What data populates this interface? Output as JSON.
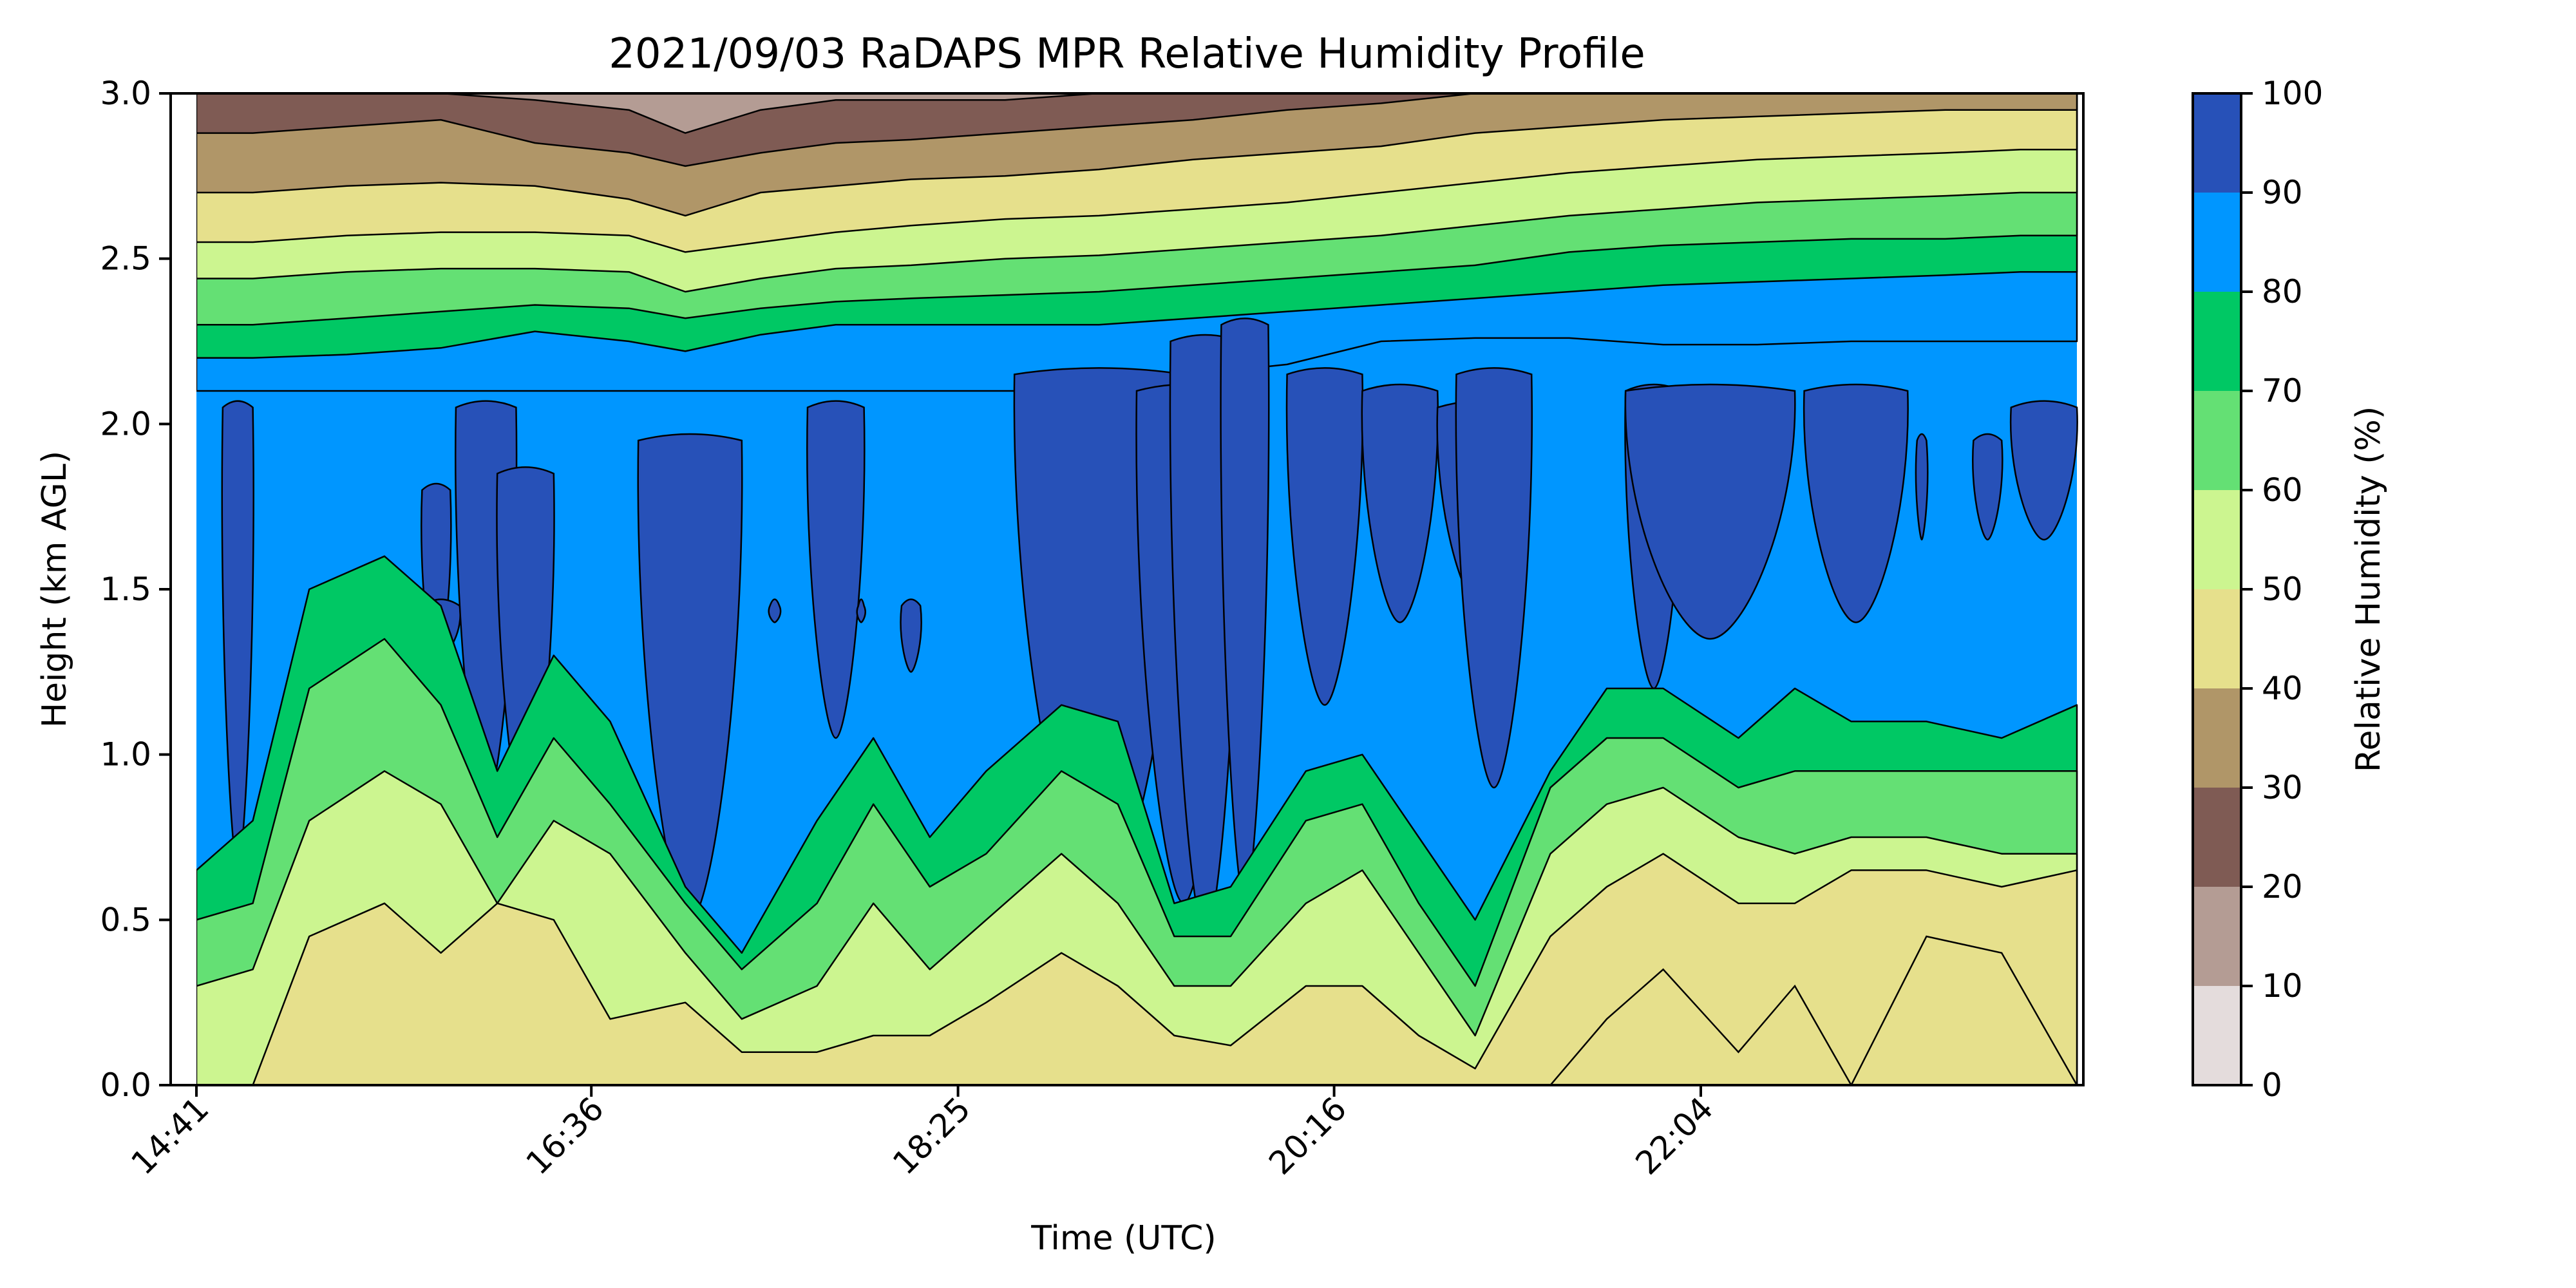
{
  "chart_data": {
    "type": "contour",
    "title": "2021/09/03 RaDAPS MPR Relative Humidity Profile",
    "xlabel": "Time (UTC)",
    "ylabel": "Height (km AGL)",
    "x_ticks": [
      "14:41",
      "16:36",
      "18:25",
      "20:16",
      "22:04"
    ],
    "y_ticks": [
      "0.0",
      "0.5",
      "1.0",
      "1.5",
      "2.0",
      "2.5",
      "3.0"
    ],
    "ylim": [
      0,
      3.0
    ],
    "colorbar": {
      "label": "Relative Humidity (%)",
      "ticks": [
        "0",
        "10",
        "20",
        "30",
        "40",
        "50",
        "60",
        "70",
        "80",
        "90",
        "100"
      ],
      "levels": [
        0,
        10,
        20,
        30,
        40,
        50,
        60,
        70,
        80,
        90,
        100
      ],
      "colors": [
        "#e4dcdc",
        "#b49c94",
        "#7f5b54",
        "#b09668",
        "#e6e08c",
        "#ccf590",
        "#64e074",
        "#00c864",
        "#0096ff",
        "#2751b8"
      ]
    },
    "profile_columns_km": {
      "description_fields": [
        "t",
        "b10",
        "b20",
        "b30",
        "b40",
        "b50",
        "b60",
        "b70",
        "b80",
        "b90"
      ],
      "data": [
        [
          0.0,
          3.0,
          3.0,
          2.88,
          2.7,
          2.55,
          2.44,
          2.3,
          2.2,
          2.1
        ],
        [
          0.03,
          3.0,
          3.0,
          2.88,
          2.7,
          2.55,
          2.44,
          2.3,
          2.2,
          2.1
        ],
        [
          0.08,
          3.0,
          3.0,
          2.9,
          2.72,
          2.57,
          2.46,
          2.32,
          2.21,
          2.1
        ],
        [
          0.13,
          3.0,
          3.0,
          2.92,
          2.73,
          2.58,
          2.47,
          2.34,
          2.23,
          2.1
        ],
        [
          0.18,
          3.0,
          2.98,
          2.85,
          2.72,
          2.58,
          2.47,
          2.36,
          2.28,
          2.1
        ],
        [
          0.23,
          3.0,
          2.95,
          2.82,
          2.68,
          2.57,
          2.46,
          2.35,
          2.25,
          2.1
        ],
        [
          0.26,
          3.0,
          2.88,
          2.78,
          2.63,
          2.52,
          2.4,
          2.32,
          2.22,
          2.1
        ],
        [
          0.3,
          3.0,
          2.95,
          2.82,
          2.7,
          2.55,
          2.44,
          2.35,
          2.27,
          2.1
        ],
        [
          0.34,
          3.0,
          2.98,
          2.85,
          2.72,
          2.58,
          2.47,
          2.37,
          2.3,
          2.1
        ],
        [
          0.38,
          3.0,
          2.98,
          2.86,
          2.74,
          2.6,
          2.48,
          2.38,
          2.3,
          2.1
        ],
        [
          0.43,
          3.0,
          2.98,
          2.88,
          2.75,
          2.62,
          2.5,
          2.39,
          2.3,
          2.1
        ],
        [
          0.48,
          3.0,
          3.0,
          2.9,
          2.77,
          2.63,
          2.51,
          2.4,
          2.3,
          2.1
        ],
        [
          0.53,
          3.0,
          3.0,
          2.92,
          2.8,
          2.65,
          2.53,
          2.42,
          2.32,
          2.15
        ],
        [
          0.58,
          3.0,
          3.0,
          2.95,
          2.82,
          2.67,
          2.55,
          2.44,
          2.34,
          2.18
        ],
        [
          0.63,
          3.0,
          3.0,
          2.97,
          2.84,
          2.7,
          2.57,
          2.46,
          2.36,
          2.25
        ],
        [
          0.68,
          3.0,
          3.0,
          3.0,
          2.88,
          2.73,
          2.6,
          2.48,
          2.38,
          2.26
        ],
        [
          0.73,
          3.0,
          3.0,
          3.0,
          2.9,
          2.76,
          2.63,
          2.52,
          2.4,
          2.26
        ],
        [
          0.78,
          3.0,
          3.0,
          3.0,
          2.92,
          2.78,
          2.65,
          2.54,
          2.42,
          2.24
        ],
        [
          0.83,
          3.0,
          3.0,
          3.0,
          2.93,
          2.8,
          2.67,
          2.55,
          2.43,
          2.24
        ],
        [
          0.88,
          3.0,
          3.0,
          3.0,
          2.94,
          2.81,
          2.68,
          2.56,
          2.44,
          2.25
        ],
        [
          0.93,
          3.0,
          3.0,
          3.0,
          2.95,
          2.82,
          2.69,
          2.56,
          2.45,
          2.25
        ],
        [
          0.97,
          3.0,
          3.0,
          3.0,
          2.95,
          2.83,
          2.7,
          2.57,
          2.46,
          2.25
        ],
        [
          1.0,
          3.0,
          3.0,
          3.0,
          2.95,
          2.83,
          2.7,
          2.57,
          2.46,
          2.25
        ]
      ]
    },
    "low_layers_km": {
      "description_fields": [
        "t",
        "top40",
        "top50",
        "top60",
        "top70",
        "top80"
      ],
      "data": [
        [
          0.0,
          0.0,
          0.0,
          0.3,
          0.5,
          0.65
        ],
        [
          0.03,
          0.0,
          0.0,
          0.35,
          0.55,
          0.8
        ],
        [
          0.06,
          0.0,
          0.45,
          0.8,
          1.2,
          1.5
        ],
        [
          0.1,
          0.0,
          0.55,
          0.95,
          1.35,
          1.6
        ],
        [
          0.13,
          0.0,
          0.4,
          0.85,
          1.15,
          1.45
        ],
        [
          0.16,
          0.0,
          0.55,
          0.55,
          0.75,
          0.95
        ],
        [
          0.19,
          0.0,
          0.5,
          0.8,
          1.05,
          1.3
        ],
        [
          0.22,
          0.0,
          0.2,
          0.7,
          0.85,
          1.1
        ],
        [
          0.26,
          0.0,
          0.25,
          0.4,
          0.55,
          0.6
        ],
        [
          0.29,
          0.0,
          0.1,
          0.2,
          0.35,
          0.4
        ],
        [
          0.33,
          0.0,
          0.1,
          0.3,
          0.55,
          0.8
        ],
        [
          0.36,
          0.0,
          0.15,
          0.55,
          0.85,
          1.05
        ],
        [
          0.39,
          0.0,
          0.15,
          0.35,
          0.6,
          0.75
        ],
        [
          0.42,
          0.0,
          0.25,
          0.5,
          0.7,
          0.95
        ],
        [
          0.46,
          0.0,
          0.4,
          0.7,
          0.95,
          1.15
        ],
        [
          0.49,
          0.0,
          0.3,
          0.55,
          0.85,
          1.1
        ],
        [
          0.52,
          0.0,
          0.15,
          0.3,
          0.45,
          0.55
        ],
        [
          0.55,
          0.0,
          0.12,
          0.3,
          0.45,
          0.6
        ],
        [
          0.59,
          0.0,
          0.3,
          0.55,
          0.8,
          0.95
        ],
        [
          0.62,
          0.0,
          0.3,
          0.65,
          0.85,
          1.0
        ],
        [
          0.65,
          0.0,
          0.15,
          0.4,
          0.55,
          0.75
        ],
        [
          0.68,
          0.0,
          0.05,
          0.15,
          0.3,
          0.5
        ],
        [
          0.72,
          0.0,
          0.45,
          0.7,
          0.9,
          0.95
        ],
        [
          0.75,
          0.2,
          0.6,
          0.85,
          1.05,
          1.2
        ],
        [
          0.78,
          0.35,
          0.7,
          0.9,
          1.05,
          1.2
        ],
        [
          0.82,
          0.1,
          0.55,
          0.75,
          0.9,
          1.05
        ],
        [
          0.85,
          0.3,
          0.55,
          0.7,
          0.95,
          1.2
        ],
        [
          0.88,
          0.0,
          0.65,
          0.75,
          0.95,
          1.1
        ],
        [
          0.92,
          0.45,
          0.65,
          0.75,
          0.95,
          1.1
        ],
        [
          0.96,
          0.4,
          0.6,
          0.7,
          0.95,
          1.05
        ],
        [
          1.0,
          0.0,
          0.65,
          0.7,
          0.95,
          1.15
        ]
      ]
    },
    "saturated_cells_km": {
      "description_fields": [
        "t_start",
        "t_end",
        "y_bottom",
        "y_top"
      ],
      "data": [
        [
          0.014,
          0.03,
          0.65,
          2.05
        ],
        [
          0.12,
          0.135,
          1.25,
          1.8
        ],
        [
          0.12,
          0.14,
          1.3,
          1.45
        ],
        [
          0.138,
          0.17,
          0.85,
          2.05
        ],
        [
          0.16,
          0.19,
          0.8,
          1.85
        ],
        [
          0.235,
          0.29,
          0.5,
          1.95
        ],
        [
          0.305,
          0.31,
          1.4,
          1.45
        ],
        [
          0.325,
          0.355,
          1.05,
          2.05
        ],
        [
          0.352,
          0.355,
          1.4,
          1.45
        ],
        [
          0.375,
          0.385,
          1.25,
          1.45
        ],
        [
          0.435,
          0.525,
          0.55,
          2.15
        ],
        [
          0.5,
          0.55,
          0.55,
          2.1
        ],
        [
          0.518,
          0.555,
          0.45,
          2.25
        ],
        [
          0.545,
          0.57,
          0.55,
          2.3
        ],
        [
          0.58,
          0.62,
          1.15,
          2.15
        ],
        [
          0.62,
          0.66,
          1.4,
          2.1
        ],
        [
          0.66,
          0.705,
          1.45,
          2.05
        ],
        [
          0.67,
          0.71,
          0.9,
          2.15
        ],
        [
          0.76,
          0.79,
          1.2,
          2.1
        ],
        [
          0.76,
          0.85,
          1.35,
          2.1
        ],
        [
          0.855,
          0.91,
          1.4,
          2.1
        ],
        [
          0.915,
          0.92,
          1.65,
          1.95
        ],
        [
          0.945,
          0.96,
          1.65,
          1.95
        ],
        [
          0.965,
          1.0,
          1.65,
          2.05
        ]
      ]
    }
  }
}
